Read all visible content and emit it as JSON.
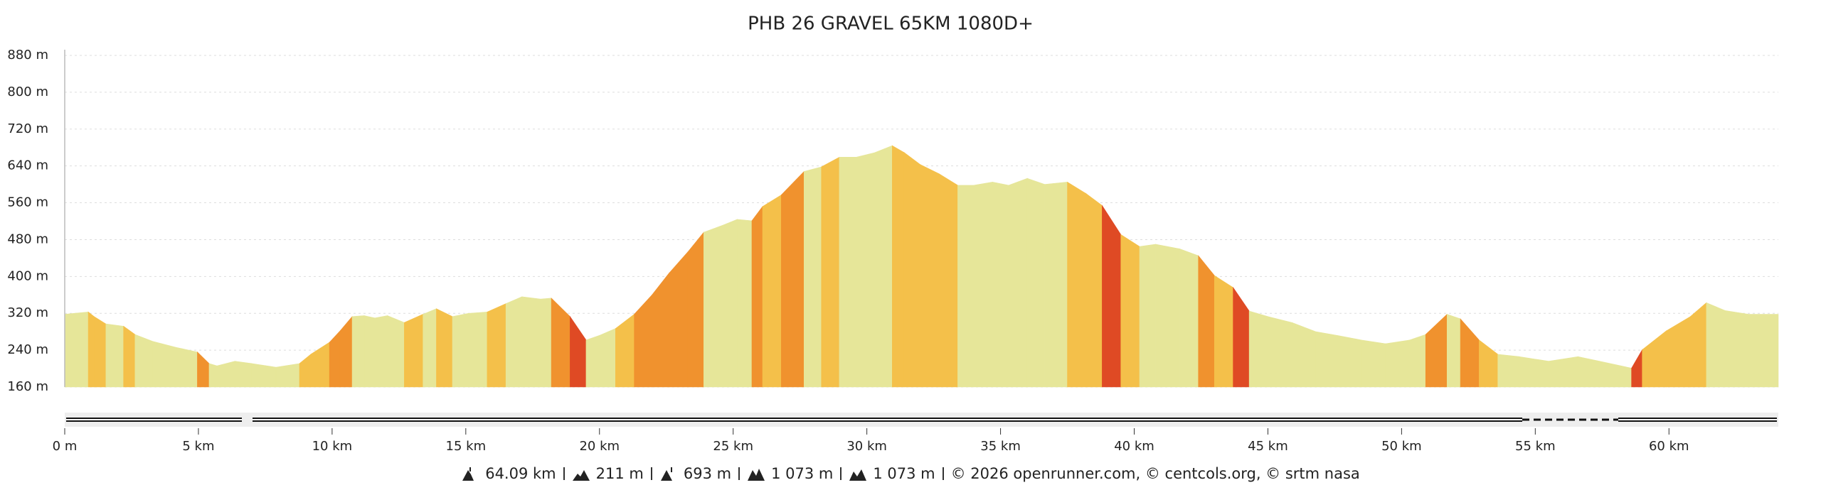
{
  "chart_data": {
    "type": "area",
    "title": "PHB 26 GRAVEL 65KM 1080D+",
    "series": [
      {
        "name": "elevation",
        "x": [
          0,
          0.88,
          1.1,
          1.54,
          2.2,
          2.63,
          3.3,
          4.17,
          4.96,
          5.4,
          5.7,
          6.37,
          7.0,
          7.9,
          8.78,
          9.2,
          9.9,
          10.3,
          10.75,
          11.2,
          11.6,
          12.07,
          12.7,
          13.4,
          13.9,
          14.5,
          15.1,
          15.8,
          16.5,
          17.1,
          17.8,
          18.2,
          18.9,
          19.5,
          20.0,
          20.6,
          21.3,
          21.95,
          22.6,
          23.3,
          23.9,
          24.6,
          25.15,
          25.7,
          26.1,
          26.8,
          27.65,
          28.3,
          28.97,
          29.6,
          30.3,
          30.95,
          31.4,
          32.0,
          32.7,
          33.4,
          34.0,
          34.7,
          35.3,
          36.0,
          36.65,
          37.5,
          38.2,
          38.8,
          39.5,
          40.2,
          40.8,
          41.7,
          42.4,
          43.0,
          43.7,
          44.3,
          45.0,
          45.9,
          46.8,
          47.6,
          48.5,
          49.4,
          50.3,
          50.9,
          51.7,
          52.2,
          52.9,
          53.6,
          54.4,
          55.5,
          56.6,
          57.4,
          58.6,
          59.0,
          59.9,
          60.8,
          61.4,
          62.1,
          62.97,
          64.09
        ],
        "values": [
          318,
          323,
          313,
          297,
          292,
          274,
          259,
          246,
          236,
          211,
          206,
          216,
          211,
          203,
          211,
          231,
          257,
          282,
          313,
          315,
          310,
          315,
          300,
          318,
          330,
          313,
          320,
          323,
          341,
          356,
          351,
          353,
          313,
          262,
          272,
          287,
          318,
          359,
          407,
          453,
          496,
          511,
          524,
          521,
          552,
          577,
          628,
          638,
          659,
          659,
          669,
          684,
          669,
          643,
          623,
          598,
          598,
          605,
          598,
          613,
          600,
          605,
          580,
          554,
          491,
          465,
          470,
          460,
          445,
          402,
          376,
          325,
          313,
          300,
          280,
          272,
          262,
          254,
          262,
          274,
          318,
          308,
          262,
          231,
          226,
          216,
          226,
          216,
          201,
          241,
          282,
          313,
          343,
          326,
          318,
          318
        ]
      }
    ],
    "xlim": [
      0,
      64.09
    ],
    "xticks": [
      {
        "value": 0,
        "label": "0 m"
      },
      {
        "value": 5,
        "label": "5 km"
      },
      {
        "value": 10,
        "label": "10 km"
      },
      {
        "value": 15,
        "label": "15 km"
      },
      {
        "value": 20,
        "label": "20 km"
      },
      {
        "value": 25,
        "label": "25 km"
      },
      {
        "value": 30,
        "label": "30 km"
      },
      {
        "value": 35,
        "label": "35 km"
      },
      {
        "value": 40,
        "label": "40 km"
      },
      {
        "value": 45,
        "label": "45 km"
      },
      {
        "value": 50,
        "label": "50 km"
      },
      {
        "value": 55,
        "label": "55 km"
      },
      {
        "value": 60,
        "label": "60 km"
      }
    ],
    "ylim": [
      160,
      880
    ],
    "yticks": [
      {
        "value": 160,
        "label": "160 m"
      },
      {
        "value": 240,
        "label": "240 m"
      },
      {
        "value": 320,
        "label": "320 m"
      },
      {
        "value": 400,
        "label": "400 m"
      },
      {
        "value": 480,
        "label": "480 m"
      },
      {
        "value": 560,
        "label": "560 m"
      },
      {
        "value": 640,
        "label": "640 m"
      },
      {
        "value": 720,
        "label": "720 m"
      },
      {
        "value": 800,
        "label": "800 m"
      },
      {
        "value": 880,
        "label": "880 m"
      }
    ],
    "grid": true,
    "footer": {
      "stats": [
        "64.09 km",
        "211 m",
        "693 m",
        "1 073 m",
        "1 073 m"
      ],
      "credits": "© 2026 openrunner.com, © centcols.org, © srtm nasa"
    }
  }
}
